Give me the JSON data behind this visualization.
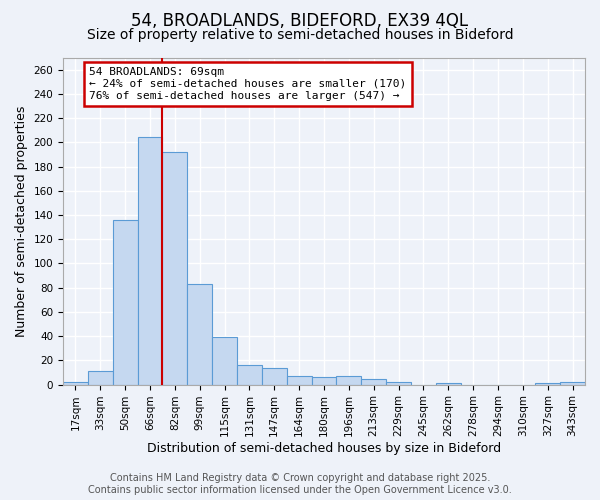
{
  "title": "54, BROADLANDS, BIDEFORD, EX39 4QL",
  "subtitle": "Size of property relative to semi-detached houses in Bideford",
  "xlabel": "Distribution of semi-detached houses by size in Bideford",
  "ylabel": "Number of semi-detached properties",
  "bin_labels": [
    "17sqm",
    "33sqm",
    "50sqm",
    "66sqm",
    "82sqm",
    "99sqm",
    "115sqm",
    "131sqm",
    "147sqm",
    "164sqm",
    "180sqm",
    "196sqm",
    "213sqm",
    "229sqm",
    "245sqm",
    "262sqm",
    "278sqm",
    "294sqm",
    "310sqm",
    "327sqm",
    "343sqm"
  ],
  "bar_heights": [
    2,
    11,
    136,
    204,
    192,
    83,
    39,
    16,
    14,
    7,
    6,
    7,
    5,
    2,
    0,
    1,
    0,
    0,
    0,
    1,
    2
  ],
  "bar_color": "#c5d8f0",
  "bar_edge_color": "#5b9bd5",
  "vline_index": 3,
  "annotation_title": "54 BROADLANDS: 69sqm",
  "annotation_line1": "← 24% of semi-detached houses are smaller (170)",
  "annotation_line2": "76% of semi-detached houses are larger (547) →",
  "annotation_box_facecolor": "#ffffff",
  "annotation_box_edgecolor": "#cc0000",
  "vline_color": "#cc0000",
  "ylim": [
    0,
    270
  ],
  "yticks": [
    0,
    20,
    40,
    60,
    80,
    100,
    120,
    140,
    160,
    180,
    200,
    220,
    240,
    260
  ],
  "footer_line1": "Contains HM Land Registry data © Crown copyright and database right 2025.",
  "footer_line2": "Contains public sector information licensed under the Open Government Licence v3.0.",
  "bg_color": "#eef2f9",
  "grid_color": "#ffffff",
  "title_fontsize": 12,
  "subtitle_fontsize": 10,
  "axis_label_fontsize": 9,
  "tick_fontsize": 7.5,
  "footer_fontsize": 7,
  "annotation_fontsize": 8
}
